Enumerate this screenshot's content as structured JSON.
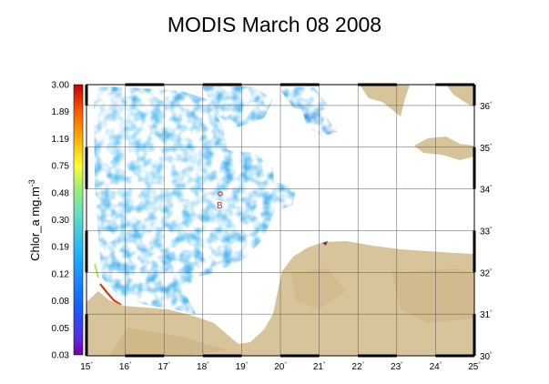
{
  "title": "MODIS March 08 2008",
  "colorbar": {
    "label": "Chlor_a mg.m",
    "label_sup": "-3",
    "ticks": [
      "3.00",
      "1.89",
      "1.19",
      "0.75",
      "0.48",
      "0.30",
      "0.19",
      "0.12",
      "0.08",
      "0.05",
      "0.03"
    ]
  },
  "longitude_labels": [
    "15",
    "16",
    "17",
    "18",
    "19",
    "20",
    "21",
    "22",
    "23",
    "24",
    "25"
  ],
  "latitude_labels": [
    "36",
    "35",
    "34",
    "33",
    "32",
    "31",
    "30"
  ],
  "degree_symbol": "°",
  "station_label": "B",
  "colors": {
    "land": "#d8c49a",
    "land_dark": "#c9b07f",
    "water_low": "#4fb4ee",
    "water_mid": "#6ec8f5",
    "water_high": "#3a90e0",
    "grid": "#444444",
    "coast_bloom": "#d23c1c"
  },
  "map_extent": {
    "lon_min": 15,
    "lon_max": 25,
    "lat_min": 30,
    "lat_max": 36.5
  }
}
